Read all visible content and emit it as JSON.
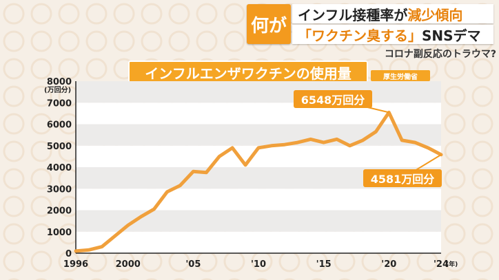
{
  "caption": {
    "tag": "何が",
    "line1_plain": "インフル接種率が",
    "line1_accent": "減少傾向",
    "line2_accent": "「ワクチン臭する」",
    "line2_plain": "SNSデマ",
    "sub": "コロナ副反応のトラウマ?"
  },
  "chart_data": {
    "type": "line",
    "title": "インフルエンザワクチンの使用量",
    "source": "厚生労働省",
    "y_unit_label": "(万回分)",
    "x_unit_label": "(年)",
    "ylim": [
      0,
      8000
    ],
    "xlim": [
      1996,
      2024
    ],
    "yticks": [
      0,
      1000,
      2000,
      3000,
      4000,
      5000,
      6000,
      7000,
      8000
    ],
    "xticks": [
      {
        "value": 1996,
        "label": "1996"
      },
      {
        "value": 2000,
        "label": "2000"
      },
      {
        "value": 2005,
        "label": "'05"
      },
      {
        "value": 2010,
        "label": "'10"
      },
      {
        "value": 2015,
        "label": "'15"
      },
      {
        "value": 2020,
        "label": "'20"
      },
      {
        "value": 2024,
        "label": "'24"
      }
    ],
    "grid": "alternating horizontal bands",
    "line_color": "#f0a03c",
    "x": [
      1996,
      1997,
      1998,
      1999,
      2000,
      2001,
      2002,
      2003,
      2004,
      2005,
      2006,
      2007,
      2008,
      2009,
      2010,
      2011,
      2012,
      2013,
      2014,
      2015,
      2016,
      2017,
      2018,
      2019,
      2020,
      2021,
      2022,
      2023,
      2024
    ],
    "values": [
      100,
      150,
      300,
      800,
      1300,
      1700,
      2050,
      2850,
      3150,
      3800,
      3750,
      4500,
      4900,
      4100,
      4900,
      5000,
      5050,
      5150,
      5300,
      5150,
      5300,
      5000,
      5250,
      5650,
      6548,
      5250,
      5150,
      4900,
      4581
    ],
    "annotations": [
      {
        "x": 2020,
        "value": 6548,
        "label": "6548万回分"
      },
      {
        "x": 2024,
        "value": 4581,
        "label": "4581万回分"
      }
    ]
  }
}
